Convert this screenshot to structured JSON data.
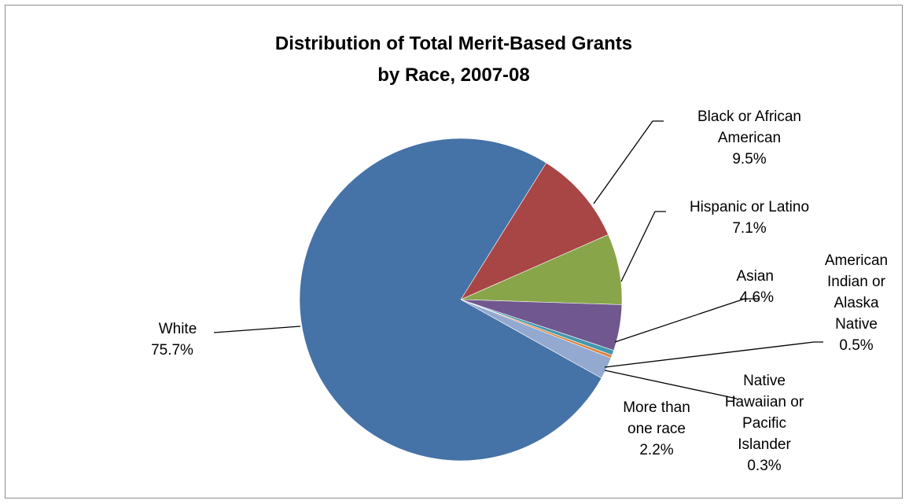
{
  "chart_data": {
    "type": "pie",
    "title_lines": [
      "Distribution of Total Merit-Based Grants",
      "by Race, 2007-08"
    ],
    "slices": [
      {
        "label_lines": [
          "Black or African",
          "American"
        ],
        "percent_label": "9.5%",
        "value": 9.5,
        "color": "#A84645"
      },
      {
        "label_lines": [
          "Hispanic or Latino"
        ],
        "percent_label": "7.1%",
        "value": 7.1,
        "color": "#88A54A"
      },
      {
        "label_lines": [
          "Asian"
        ],
        "percent_label": "4.6%",
        "value": 4.6,
        "color": "#71578F"
      },
      {
        "label_lines": [
          "American",
          "Indian or",
          "Alaska",
          "Native"
        ],
        "percent_label": "0.5%",
        "value": 0.5,
        "color": "#4298AF"
      },
      {
        "label_lines": [
          "Native",
          "Hawaiian or",
          "Pacific",
          "Islander"
        ],
        "percent_label": "0.3%",
        "value": 0.3,
        "color": "#DB843D"
      },
      {
        "label_lines": [
          "More than",
          "one race"
        ],
        "percent_label": "2.2%",
        "value": 2.2,
        "color": "#93A9CF"
      },
      {
        "label_lines": [
          "White"
        ],
        "percent_label": "75.7%",
        "value": 75.7,
        "color": "#4572A7"
      }
    ],
    "start_angle_deg": 32,
    "direction": "clockwise",
    "legend": "none"
  }
}
